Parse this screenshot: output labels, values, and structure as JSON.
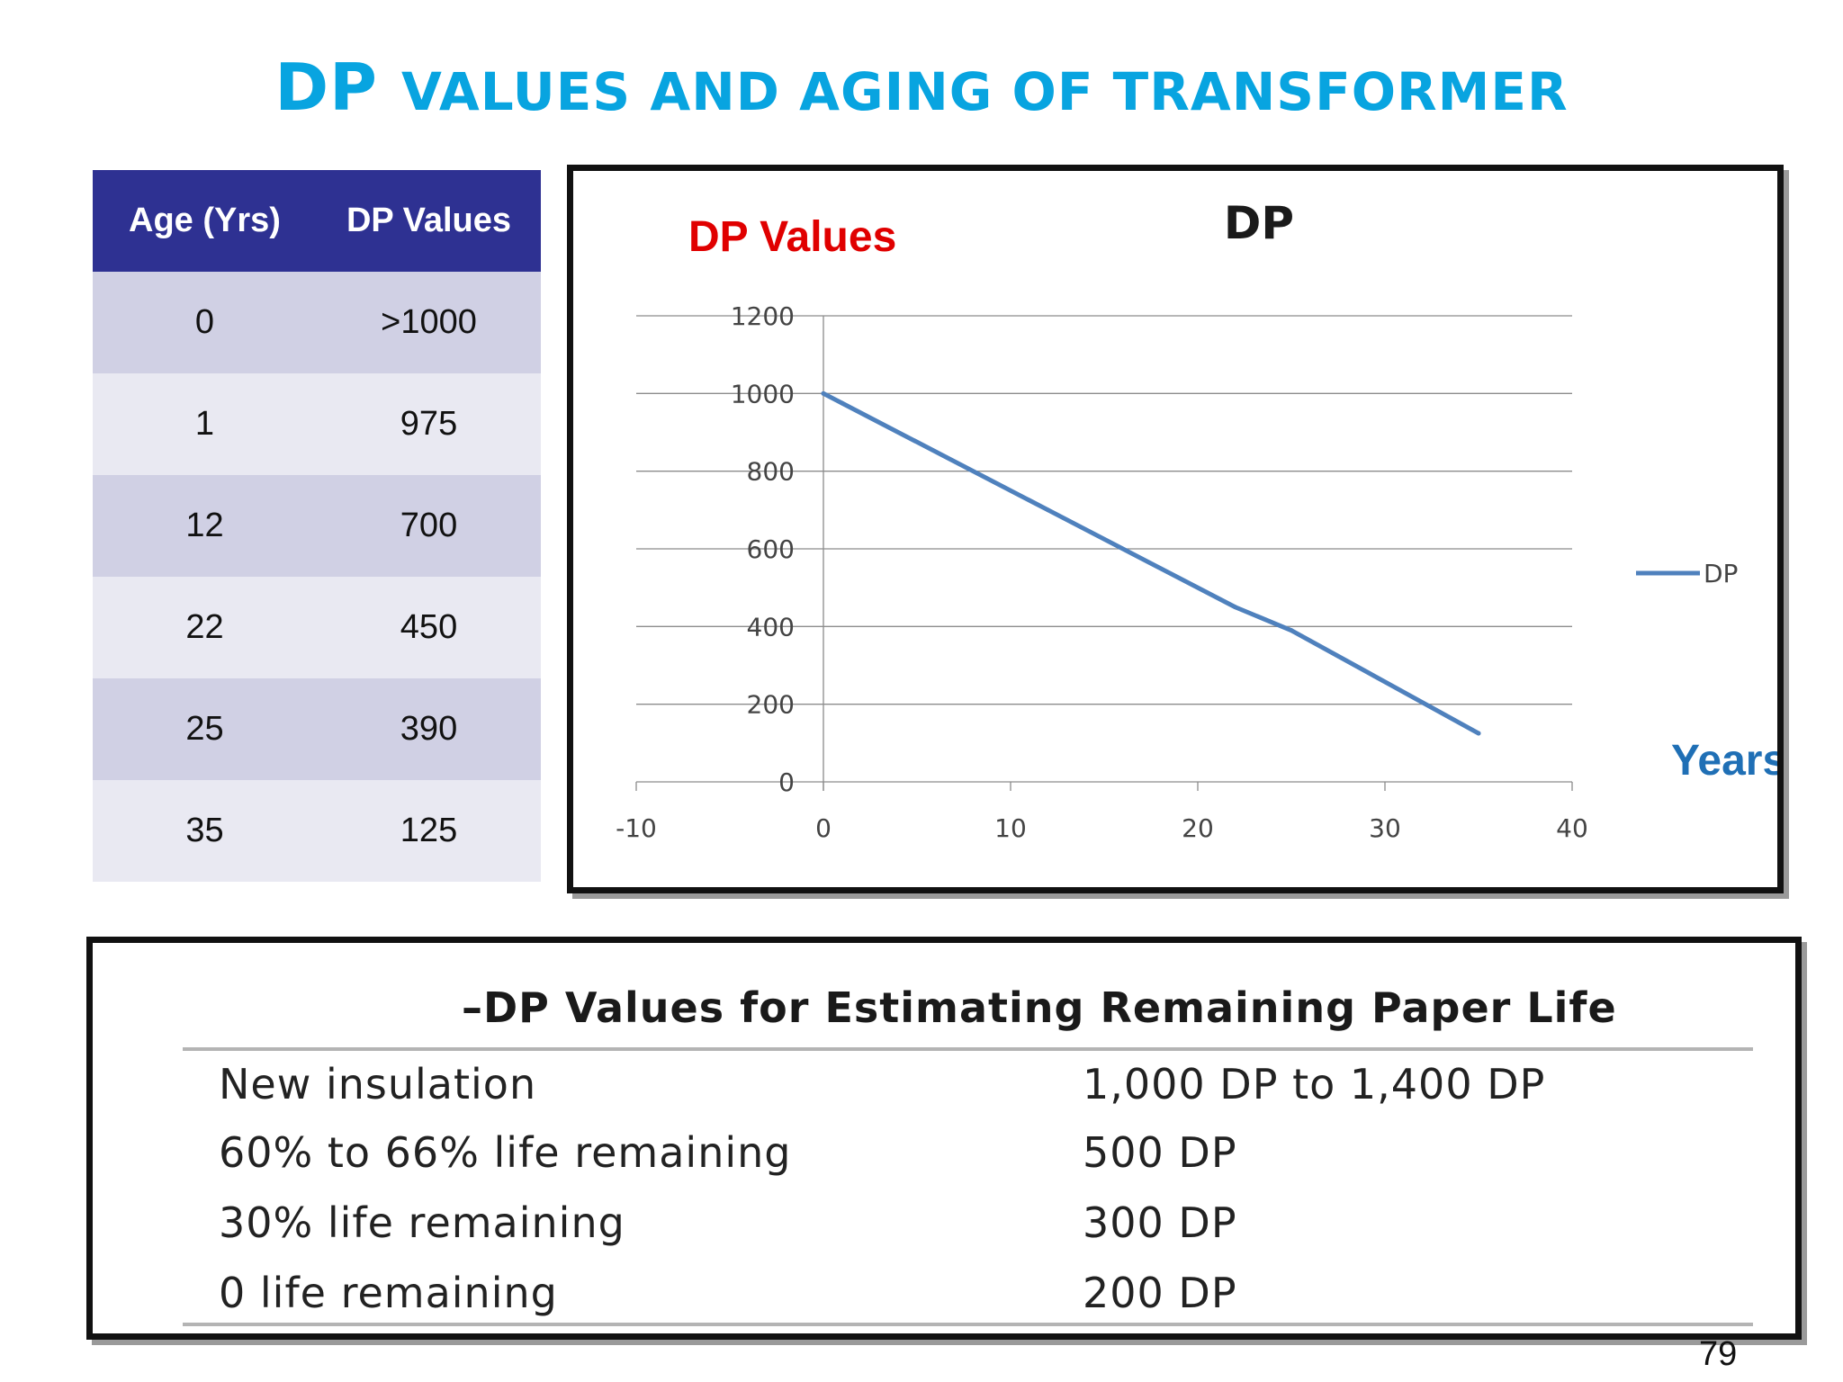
{
  "title": {
    "prefix": "DP",
    "rest": "VALUES AND AGING OF TRANSFORMER"
  },
  "table": {
    "headers": [
      "Age (Yrs)",
      "DP Values"
    ],
    "rows": [
      [
        "0",
        ">1000"
      ],
      [
        "1",
        "975"
      ],
      [
        "12",
        "700"
      ],
      [
        "22",
        "450"
      ],
      [
        "25",
        "390"
      ],
      [
        "35",
        "125"
      ]
    ]
  },
  "chart_data": {
    "type": "line",
    "title": "DP",
    "ylabel": "DP Values",
    "xlabel": "Years",
    "xlim": [
      -10,
      40
    ],
    "ylim": [
      0,
      1200
    ],
    "xticks": [
      "-10",
      "0",
      "10",
      "20",
      "30",
      "40"
    ],
    "yticks": [
      "0",
      "200",
      "400",
      "600",
      "800",
      "1000",
      "1200"
    ],
    "grid": "horizontal",
    "legend": "right",
    "series": [
      {
        "name": "DP",
        "color": "#4f81bd",
        "x": [
          0,
          1,
          12,
          22,
          25,
          35
        ],
        "y": [
          1000,
          975,
          700,
          450,
          390,
          125
        ]
      }
    ]
  },
  "life_table": {
    "heading": "–DP Values for Estimating Remaining Paper Life",
    "rows": [
      {
        "label": "New insulation",
        "value": "1,000 DP to 1,400 DP"
      },
      {
        "label": "60% to 66% life remaining",
        "value": "500 DP"
      },
      {
        "label": "30% life remaining",
        "value": "300 DP"
      },
      {
        "label": "0 life remaining",
        "value": "200 DP"
      }
    ]
  },
  "page_number": "79",
  "colors": {
    "title": "#08a4e0",
    "table_header": "#2e3192",
    "ylabel": "#e00000",
    "xlabel": "#1f6fb5",
    "series": "#4f81bd"
  }
}
